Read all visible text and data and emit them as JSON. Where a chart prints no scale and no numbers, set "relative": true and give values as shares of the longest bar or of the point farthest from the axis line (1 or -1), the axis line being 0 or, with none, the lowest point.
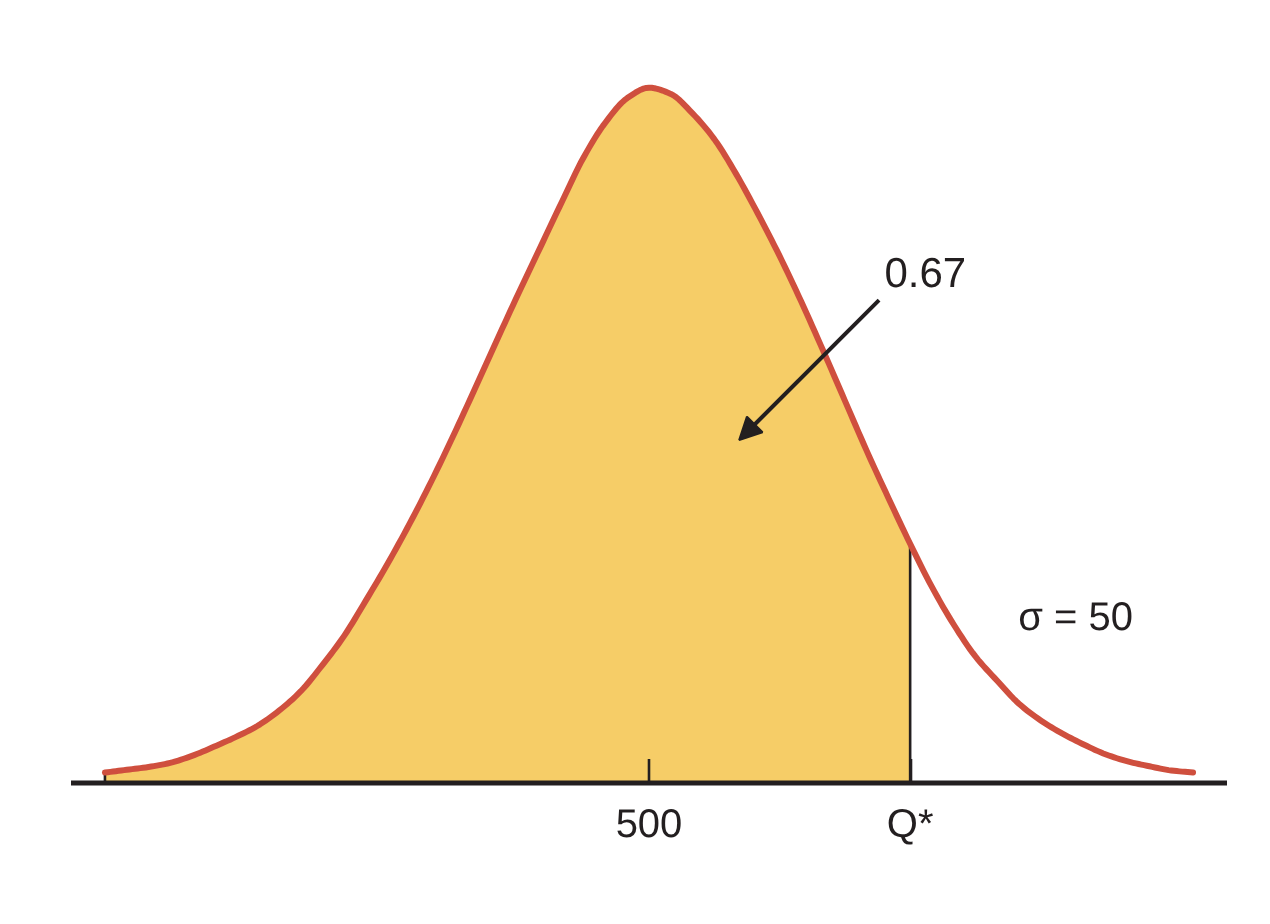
{
  "chart_data": {
    "type": "area",
    "relative": true,
    "categories": [
      null,
      null,
      null,
      null,
      null,
      null,
      null,
      null,
      null,
      null,
      null,
      null,
      null,
      null,
      null,
      null,
      null,
      null,
      null,
      null,
      null,
      null,
      null,
      null,
      null,
      "500",
      null,
      null,
      null,
      null,
      null,
      null,
      null,
      null,
      null,
      null,
      null,
      "Q*",
      null,
      null,
      null,
      null,
      null,
      null,
      null,
      null,
      null,
      null,
      null,
      null,
      null
    ],
    "series": [
      {
        "color": "#f6cd67",
        "values": [
          0.015,
          0.019,
          0.023,
          0.029,
          0.039,
          0.052,
          0.066,
          0.082,
          0.104,
          0.132,
          0.17,
          0.212,
          0.263,
          0.316,
          0.373,
          0.434,
          0.499,
          0.567,
          0.636,
          0.704,
          0.77,
          0.836,
          0.9,
          0.95,
          0.985,
          1,
          0.991,
          0.963,
          0.926,
          0.876,
          0.819,
          0.758,
          0.692,
          0.622,
          0.55,
          0.478,
          0.41,
          0.344,
          null,
          null,
          null,
          null,
          null,
          null,
          null,
          null,
          null,
          null,
          null,
          null,
          null
        ]
      },
      {
        "type": "line",
        "color": "#cf4f3e",
        "values": [
          0.015,
          0.019,
          0.023,
          0.029,
          0.039,
          0.052,
          0.066,
          0.082,
          0.104,
          0.132,
          0.17,
          0.212,
          0.263,
          0.316,
          0.373,
          0.434,
          0.499,
          0.567,
          0.636,
          0.704,
          0.77,
          0.836,
          0.9,
          0.95,
          0.985,
          1,
          0.991,
          0.963,
          0.926,
          0.876,
          0.819,
          0.758,
          0.692,
          0.622,
          0.55,
          0.478,
          0.41,
          0.344,
          0.282,
          0.228,
          0.182,
          0.147,
          0.114,
          0.09,
          0.071,
          0.055,
          0.041,
          0.031,
          0.024,
          0.018,
          0.015
        ]
      }
    ],
    "annotations": [
      "0.67",
      "σ = 50"
    ]
  }
}
